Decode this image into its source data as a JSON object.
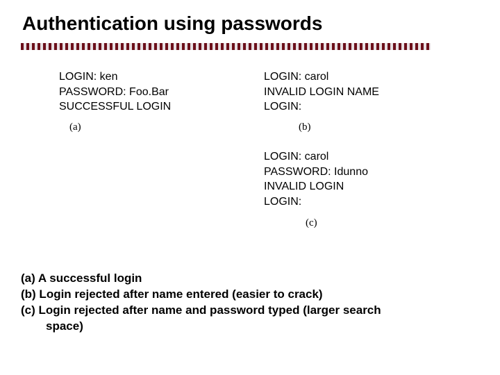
{
  "title": "Authentication using passwords",
  "rule": {
    "stripe_color_1": "#6b0f1a",
    "stripe_color_2": "#e7dfe2",
    "stripe_width": 4,
    "height": 10
  },
  "panels": {
    "a": {
      "lines": [
        "LOGIN: ken",
        "PASSWORD: Foo.Bar",
        "SUCCESSFUL LOGIN"
      ],
      "caption": "(a)"
    },
    "b": {
      "lines": [
        "LOGIN: carol",
        "INVALID LOGIN NAME",
        "LOGIN:"
      ],
      "caption": "(b)"
    },
    "c": {
      "lines": [
        "LOGIN: carol",
        "PASSWORD: Idunno",
        "INVALID LOGIN",
        "LOGIN:"
      ],
      "caption": "(c)"
    }
  },
  "bullets": {
    "a": "(a) A successful login",
    "b": "(b) Login rejected after name entered (easier to crack)",
    "c_line1": "(c) Login rejected after name and password typed (larger search",
    "c_line2": "space)"
  }
}
